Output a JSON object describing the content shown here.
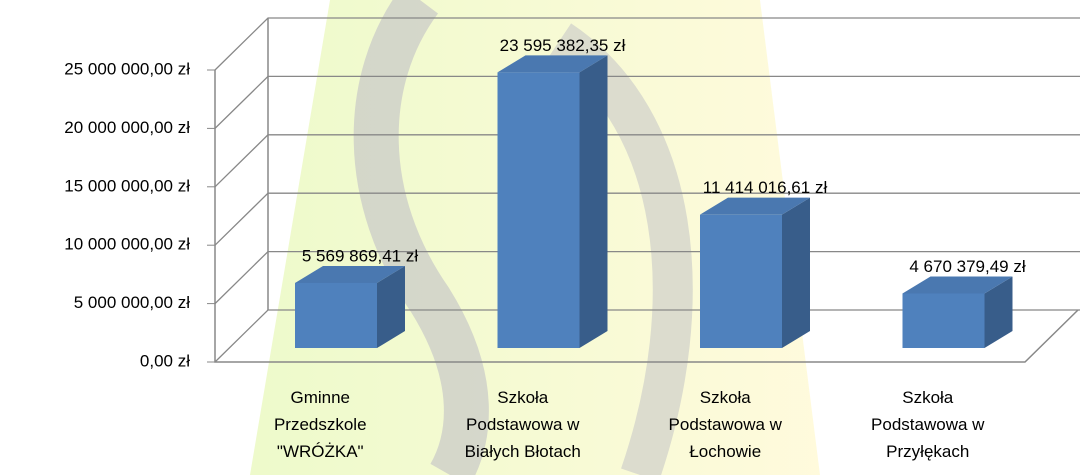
{
  "chart_data": {
    "type": "bar3d",
    "categories": [
      "Gminne\nPrzedszkole\n\"WRÓŻKA\"",
      "Szkoła\nPodstawowa w\nBiałych Błotach",
      "Szkoła\nPodstawowa w\nŁochowie",
      "Szkoła\nPodstawowa w\nPrzyłękach"
    ],
    "values": [
      5569869.41,
      23595382.35,
      11414016.61,
      4670379.49
    ],
    "value_labels": [
      "5 569 869,41 zł",
      "23 595 382,35 zł",
      "11 414 016,61 zł",
      "4 670 379,49 zł"
    ],
    "color": "#4f81bd",
    "ylim": [
      0,
      25000000
    ],
    "yticks": [
      {
        "value": 0,
        "label": "0,00 zł"
      },
      {
        "value": 5000000,
        "label": "5 000 000,00 zł"
      },
      {
        "value": 10000000,
        "label": "10 000 000,00 zł"
      },
      {
        "value": 15000000,
        "label": "15 000 000,00 zł"
      },
      {
        "value": 20000000,
        "label": "20 000 000,00 zł"
      },
      {
        "value": 25000000,
        "label": "25 000 000,00 zł"
      }
    ],
    "grid": true
  }
}
